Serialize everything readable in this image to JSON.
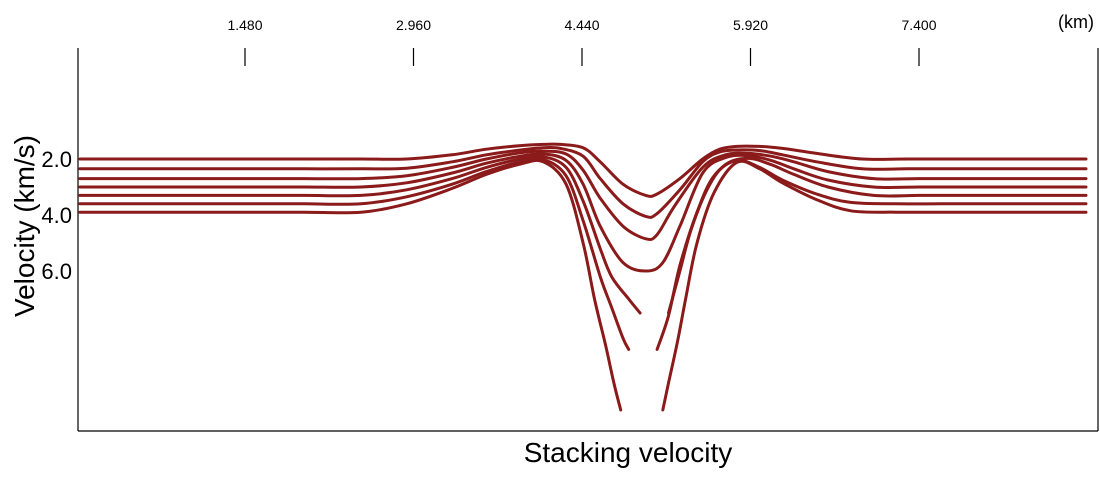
{
  "chart_data": {
    "type": "line",
    "title": "",
    "xlabel": "Stacking velocity",
    "ylabel": "Velocity (km/s)",
    "x_unit": "(km)",
    "x_axis_position": "top",
    "x_ticks": [
      "1.480",
      "2.960",
      "4.440",
      "5.920",
      "7.400"
    ],
    "x_tick_values": [
      1.48,
      2.96,
      4.44,
      5.92,
      7.4
    ],
    "xlim": [
      0.0,
      8.9
    ],
    "y_ticks": [
      "2.0",
      "4.0",
      "6.0"
    ],
    "y_tick_values": [
      2.0,
      4.0,
      6.0
    ],
    "ylim": [
      10.0,
      0.0
    ],
    "y_inverted": true,
    "grid": false,
    "legend": "none",
    "line_color": "#8b1a1a",
    "series": [
      {
        "x": [
          0.0,
          0.5,
          1.0,
          1.5,
          2.0,
          2.5,
          2.9,
          3.3,
          3.6,
          3.9,
          4.1,
          4.25,
          4.45,
          4.6,
          4.8,
          5.0,
          5.1,
          5.3,
          5.5,
          5.65,
          5.8,
          6.0,
          6.2,
          6.5,
          6.9,
          7.3,
          7.8,
          8.3,
          8.9
        ],
        "y": [
          2.0,
          2.0,
          2.0,
          2.0,
          2.0,
          2.0,
          2.0,
          1.85,
          1.65,
          1.52,
          1.48,
          1.48,
          1.6,
          2.1,
          2.9,
          3.3,
          3.25,
          2.7,
          2.0,
          1.65,
          1.55,
          1.55,
          1.62,
          1.8,
          2.0,
          2.0,
          2.0,
          2.0,
          2.0
        ]
      },
      {
        "x": [
          0.0,
          0.5,
          1.0,
          1.5,
          2.0,
          2.5,
          2.9,
          3.3,
          3.6,
          3.9,
          4.1,
          4.25,
          4.45,
          4.6,
          4.8,
          5.0,
          5.1,
          5.3,
          5.5,
          5.65,
          5.8,
          6.0,
          6.2,
          6.5,
          6.9,
          7.3,
          7.8,
          8.3,
          8.9
        ],
        "y": [
          2.35,
          2.35,
          2.35,
          2.35,
          2.35,
          2.35,
          2.33,
          2.1,
          1.85,
          1.68,
          1.6,
          1.62,
          1.9,
          2.7,
          3.6,
          4.05,
          3.95,
          3.1,
          2.1,
          1.75,
          1.68,
          1.7,
          1.85,
          2.1,
          2.35,
          2.35,
          2.35,
          2.35,
          2.35
        ]
      },
      {
        "x": [
          0.0,
          0.5,
          1.0,
          1.5,
          2.0,
          2.5,
          2.9,
          3.3,
          3.6,
          3.9,
          4.1,
          4.3,
          4.45,
          4.6,
          4.8,
          5.0,
          5.1,
          5.25,
          5.5,
          5.7,
          5.9,
          6.1,
          6.3,
          6.6,
          7.0,
          7.4,
          7.8,
          8.3,
          8.9
        ],
        "y": [
          2.7,
          2.7,
          2.7,
          2.7,
          2.7,
          2.7,
          2.6,
          2.3,
          2.0,
          1.78,
          1.72,
          1.82,
          2.4,
          3.4,
          4.4,
          4.85,
          4.7,
          3.7,
          2.3,
          1.85,
          1.8,
          1.9,
          2.1,
          2.45,
          2.7,
          2.7,
          2.7,
          2.7,
          2.7
        ]
      },
      {
        "x": [
          0.0,
          0.5,
          1.0,
          1.5,
          2.0,
          2.5,
          2.9,
          3.3,
          3.6,
          3.9,
          4.1,
          4.3,
          4.45,
          4.6,
          4.8,
          5.0,
          5.15,
          5.3,
          5.5,
          5.7,
          5.9,
          6.1,
          6.3,
          6.6,
          7.0,
          7.4,
          7.8,
          8.3,
          8.9
        ],
        "y": [
          3.0,
          3.0,
          3.0,
          3.0,
          3.0,
          3.0,
          2.85,
          2.5,
          2.15,
          1.9,
          1.82,
          2.05,
          2.9,
          4.4,
          5.7,
          6.0,
          5.7,
          4.4,
          2.5,
          1.95,
          1.88,
          2.05,
          2.35,
          2.75,
          3.0,
          3.0,
          3.0,
          3.0,
          3.0
        ]
      },
      {
        "x": [
          0.0,
          0.5,
          1.0,
          1.5,
          2.0,
          2.5,
          2.9,
          3.3,
          3.6,
          3.9,
          4.1,
          4.3,
          4.45,
          4.6,
          4.7,
          4.85,
          4.95
        ],
        "y": [
          3.3,
          3.3,
          3.3,
          3.3,
          3.3,
          3.3,
          3.1,
          2.7,
          2.3,
          2.0,
          1.92,
          2.3,
          3.5,
          5.2,
          6.2,
          7.0,
          7.5
        ]
      },
      {
        "x": [
          5.2,
          5.3,
          5.4,
          5.55,
          5.7,
          5.9,
          6.1,
          6.3,
          6.6,
          7.0,
          7.4,
          7.8,
          8.3,
          8.9
        ],
        "y": [
          7.5,
          6.0,
          4.5,
          3.0,
          2.2,
          1.98,
          2.2,
          2.55,
          3.0,
          3.3,
          3.3,
          3.3,
          3.3,
          3.3
        ]
      },
      {
        "x": [
          0.0,
          0.5,
          1.0,
          1.5,
          2.0,
          2.5,
          2.9,
          3.3,
          3.6,
          3.9,
          4.1,
          4.3,
          4.45,
          4.6,
          4.7,
          4.8,
          4.85
        ],
        "y": [
          3.6,
          3.6,
          3.6,
          3.6,
          3.6,
          3.6,
          3.35,
          2.9,
          2.45,
          2.1,
          2.02,
          2.6,
          4.2,
          6.2,
          7.3,
          8.4,
          8.8
        ]
      },
      {
        "x": [
          5.1,
          5.2,
          5.3,
          5.45,
          5.6,
          5.8,
          6.0,
          6.2,
          6.5,
          6.8,
          7.2,
          7.6,
          8.0,
          8.5,
          8.9
        ],
        "y": [
          8.8,
          7.6,
          5.8,
          3.9,
          2.6,
          2.05,
          2.3,
          2.75,
          3.25,
          3.55,
          3.6,
          3.6,
          3.6,
          3.6,
          3.6
        ]
      },
      {
        "x": [
          0.0,
          0.5,
          1.0,
          1.5,
          2.0,
          2.5,
          2.9,
          3.3,
          3.6,
          3.9,
          4.1,
          4.3,
          4.45,
          4.55,
          4.65,
          4.72,
          4.78
        ],
        "y": [
          3.9,
          3.9,
          3.9,
          3.9,
          3.9,
          3.9,
          3.6,
          3.05,
          2.55,
          2.18,
          2.1,
          2.9,
          5.0,
          7.0,
          8.7,
          10.0,
          11.2
        ]
      },
      {
        "x": [
          5.15,
          5.2,
          5.28,
          5.35,
          5.45,
          5.6,
          5.8,
          6.0,
          6.2,
          6.5,
          6.8,
          7.2,
          7.6,
          8.0,
          8.5,
          8.9
        ],
        "y": [
          11.2,
          10.0,
          8.5,
          7.0,
          5.0,
          3.2,
          2.12,
          2.35,
          2.85,
          3.45,
          3.85,
          3.9,
          3.9,
          3.9,
          3.9,
          3.9
        ]
      }
    ]
  }
}
